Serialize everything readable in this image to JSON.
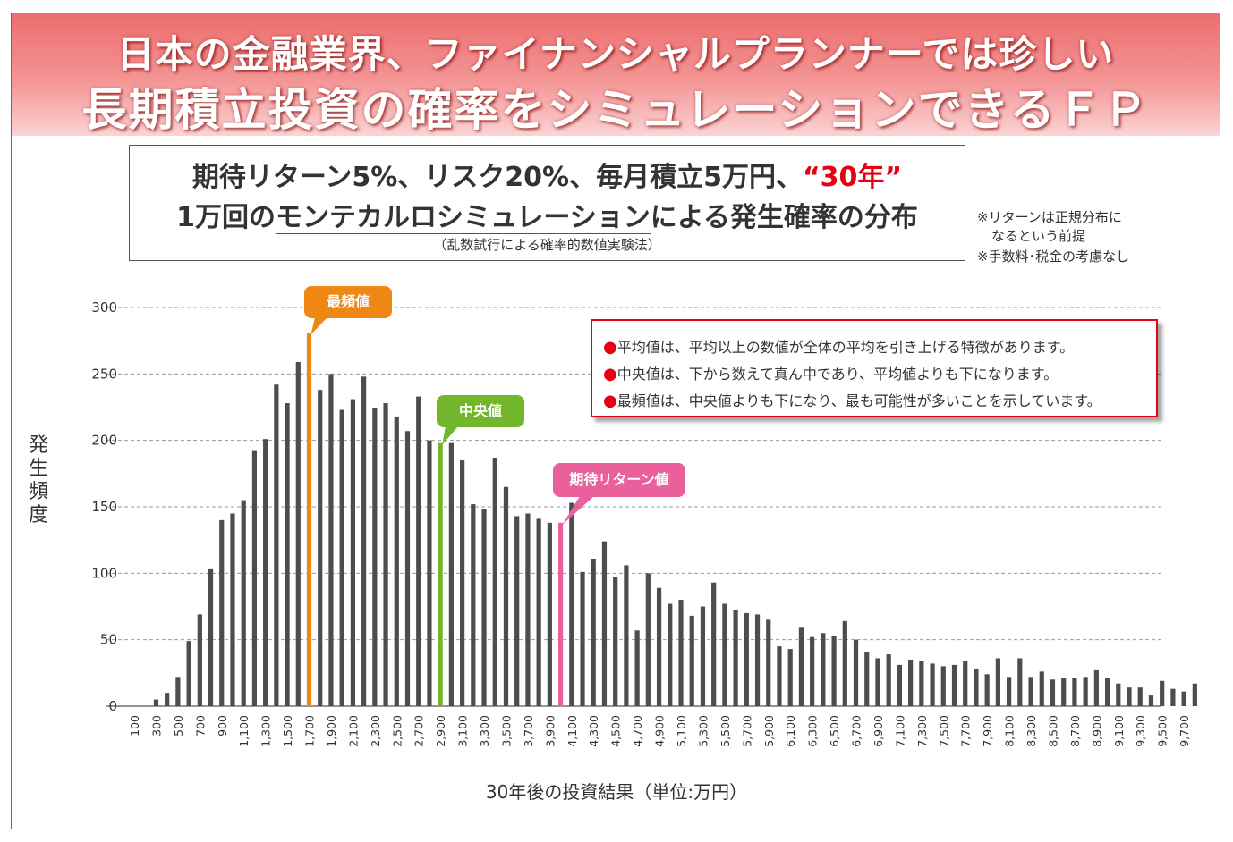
{
  "banner": {
    "line1": "日本の金融業界、ファイナンシャルプランナーでは珍しい",
    "line2": "長期積立投資の確率をシミュレーションできるＦＰ"
  },
  "title": {
    "line1_prefix": "期待リターン5%、リスク20%、毎月積立5万円、",
    "line1_highlight": "“30年”",
    "line2_prefix": "1万回の",
    "line2_underlined": "モンテカルロシミュレーション",
    "line2_suffix": "による発生確率の分布",
    "subtitle": "（乱数試行による確率的数値実験法）"
  },
  "notes": {
    "note1a": "※リターンは正規分布に",
    "note1b": "なるという前提",
    "note2": "※手数料･税金の考慮なし"
  },
  "legend": {
    "item1": "平均値は、平均以上の数値が全体の平均を引き上げる特徴があります。",
    "item2": "中央値は、下から数えて真ん中であり、平均値よりも下になります。",
    "item3": "最頻値は、中央値よりも下になり、最も可能性が多いことを示しています。",
    "bullet": "●"
  },
  "callouts": {
    "mode": "最頻値",
    "median": "中央値",
    "expected": "期待リターン値"
  },
  "colors": {
    "bar": "#4d4d4d",
    "mode": "#ee8713",
    "median": "#72b62b",
    "expected": "#e9609c",
    "accent_red": "#e60012"
  },
  "chart_data": {
    "type": "bar",
    "ylabel": "発生頻度",
    "xlabel": "30年後の投資結果（単位:万円）",
    "ylim": [
      0,
      300
    ],
    "yticks": [
      0,
      50,
      100,
      150,
      200,
      250,
      300
    ],
    "grid": true,
    "x_start": 100,
    "x_step": 100,
    "x_tick_labels": [
      "100",
      "300",
      "500",
      "700",
      "900",
      "1,100",
      "1,300",
      "1,500",
      "1,700",
      "1,900",
      "2,100",
      "2,300",
      "2,500",
      "2,700",
      "2,900",
      "3,100",
      "3,300",
      "3,500",
      "3,700",
      "3,900",
      "4,100",
      "4,300",
      "4,500",
      "4,700",
      "4,900",
      "5,100",
      "5,300",
      "5,500",
      "5,700",
      "5,900",
      "6,100",
      "6,300",
      "6,500",
      "6,700",
      "6,900",
      "7,100",
      "7,300",
      "7,500",
      "7,700",
      "7,900",
      "8,100",
      "8,300",
      "8,500",
      "8,700",
      "8,900",
      "9,100",
      "9,300",
      "9,500",
      "9,700"
    ],
    "values": [
      0,
      0,
      5,
      10,
      22,
      49,
      69,
      103,
      140,
      145,
      155,
      192,
      201,
      242,
      228,
      259,
      281,
      238,
      250,
      223,
      231,
      248,
      224,
      228,
      218,
      207,
      233,
      200,
      198,
      198,
      185,
      152,
      148,
      187,
      165,
      143,
      145,
      141,
      138,
      138,
      153,
      101,
      111,
      124,
      97,
      106,
      57,
      100,
      89,
      77,
      80,
      68,
      75,
      93,
      77,
      72,
      70,
      69,
      65,
      45,
      43,
      59,
      52,
      55,
      53,
      64,
      50,
      41,
      36,
      39,
      31,
      35,
      34,
      32,
      30,
      31,
      34,
      28,
      24,
      36,
      22,
      36,
      22,
      26,
      20,
      21,
      21,
      22,
      27,
      21,
      17,
      14,
      14,
      8,
      19,
      13,
      11,
      17
    ],
    "highlights": [
      {
        "label": "最頻値",
        "x": 1700,
        "value": 281,
        "color": "#ee8713"
      },
      {
        "label": "中央値",
        "x": 2900,
        "value": 198,
        "color": "#72b62b"
      },
      {
        "label": "期待リターン値",
        "x": 4000,
        "value": 138,
        "color": "#e9609c"
      }
    ]
  }
}
